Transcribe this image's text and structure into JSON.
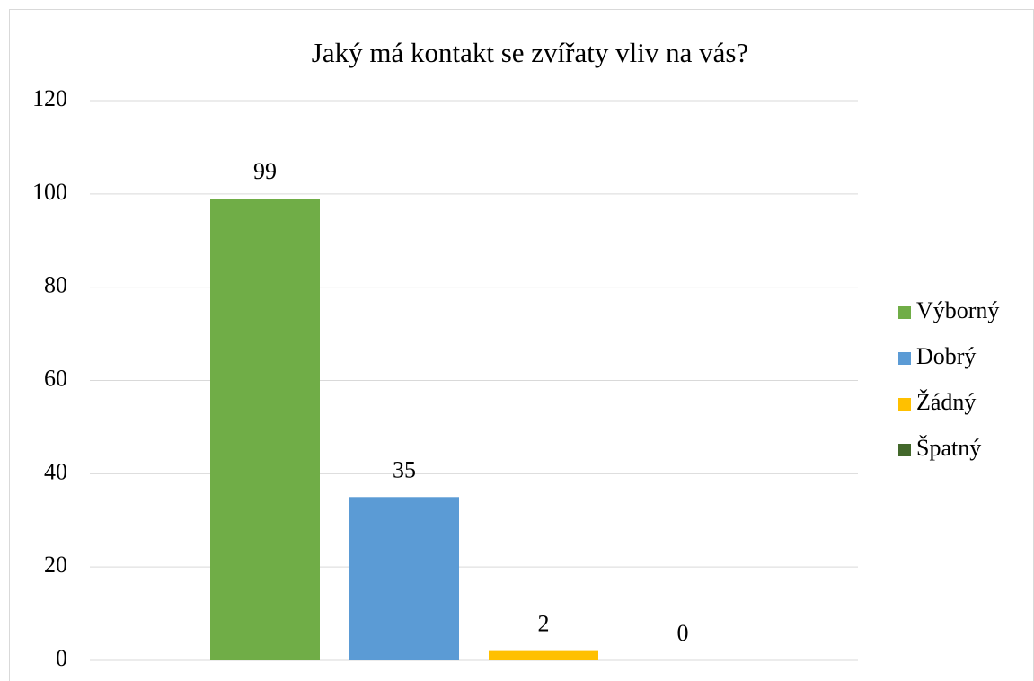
{
  "chart_data": {
    "type": "bar",
    "title": "Jaký má kontakt se zvířaty vliv na vás?",
    "series": [
      {
        "name": "Výborný",
        "color": "#70ad47",
        "values": [
          99
        ]
      },
      {
        "name": "Dobrý",
        "color": "#5b9bd5",
        "values": [
          35
        ]
      },
      {
        "name": "Žádný",
        "color": "#ffc000",
        "values": [
          2
        ]
      },
      {
        "name": "Špatný",
        "color": "#43682b",
        "values": [
          0
        ]
      }
    ],
    "ylim": [
      0,
      120
    ],
    "yticks": [
      0,
      20,
      40,
      60,
      80,
      100,
      120
    ],
    "grid": true,
    "legend": "right",
    "data_labels": true
  }
}
